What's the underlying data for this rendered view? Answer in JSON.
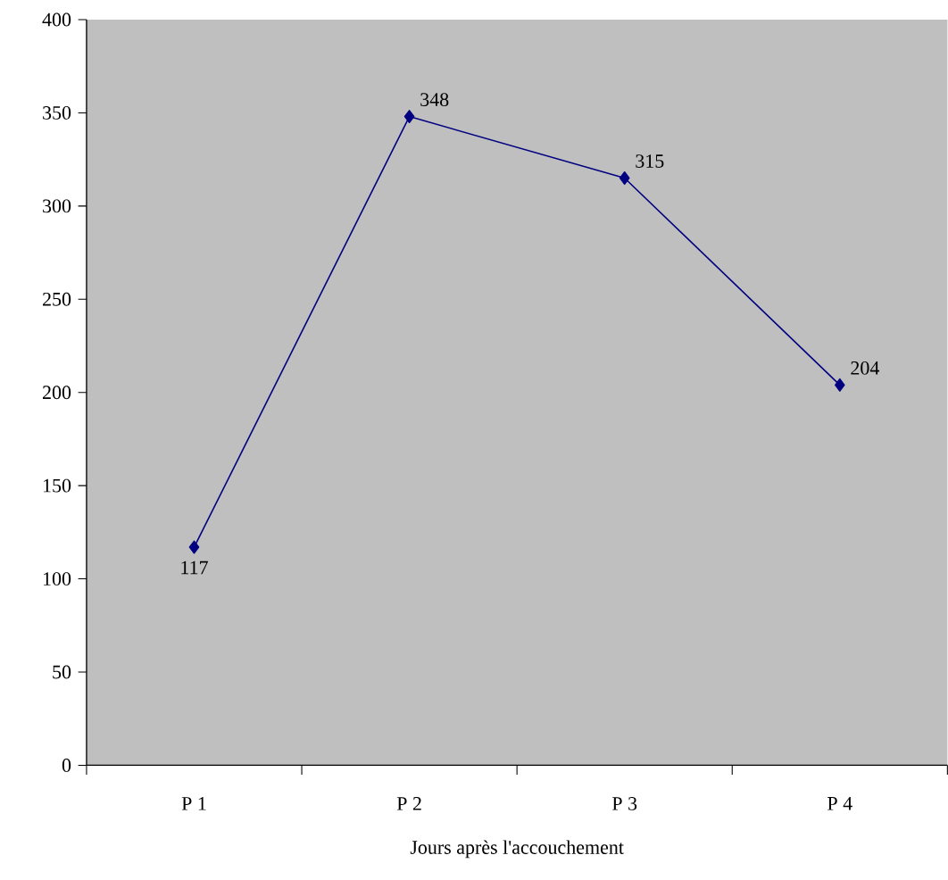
{
  "chart_data": {
    "type": "line",
    "xlabel": "Jours après l'accouchement",
    "categories": [
      "P 1",
      "P 2",
      "P 3",
      "P 4"
    ],
    "series": [
      {
        "color": "#000080",
        "values": [
          117,
          348,
          315,
          204
        ]
      }
    ],
    "ylim": [
      0,
      400
    ],
    "yticks": [
      0,
      50,
      100,
      150,
      200,
      250,
      300,
      350,
      400
    ],
    "marker": "diamond",
    "line_style": "solid",
    "data_labels": true
  }
}
